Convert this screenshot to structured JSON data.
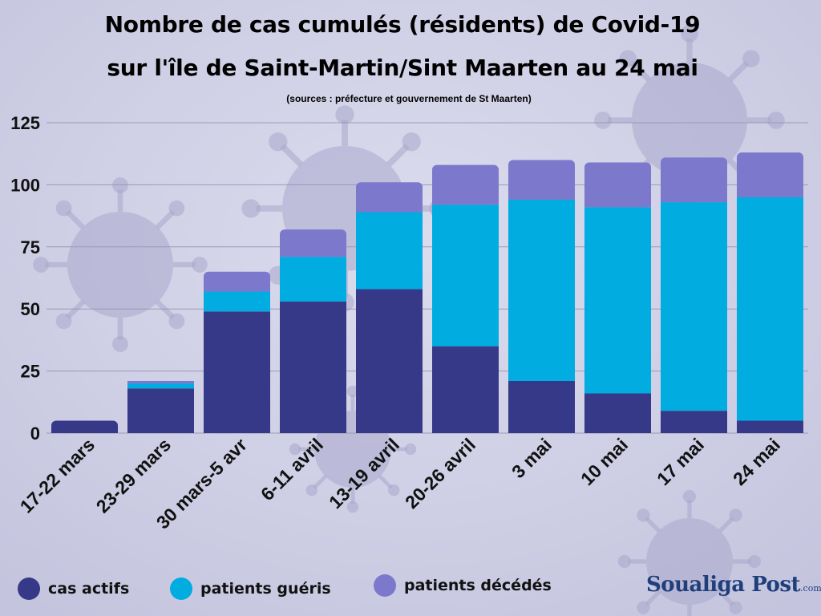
{
  "title_line1": "Nombre de  cas cumulés (résidents) de Covid-19",
  "title_line2": "sur l'île de Saint-Martin/Sint Maarten au 24 mai",
  "subtitle": "(sources : préfecture et gouvernement de St Maarten)",
  "brand": {
    "name": "Soualiga Post",
    "suffix": ".com"
  },
  "colors": {
    "background": "#cfcfe6",
    "actifs": "#363888",
    "gueris": "#00ace0",
    "decedes": "#7c79cc",
    "grid": "#9a9ab4"
  },
  "chart_data": {
    "type": "bar",
    "stacked": true,
    "categories": [
      "17-22 mars",
      "23-29 mars",
      "30 mars-5 avr",
      "6-11 avril",
      "13-19 avril",
      "20-26 avril",
      "3 mai",
      "10 mai",
      "17 mai",
      "24 mai"
    ],
    "series": [
      {
        "name": "cas actifs",
        "color": "#363888",
        "values": [
          5,
          18,
          49,
          53,
          58,
          35,
          21,
          16,
          9,
          5
        ]
      },
      {
        "name": "patients guéris",
        "color": "#00ace0",
        "values": [
          0,
          2,
          8,
          18,
          31,
          57,
          73,
          75,
          84,
          90
        ]
      },
      {
        "name": "patients décédés",
        "color": "#7c79cc",
        "values": [
          0,
          1,
          8,
          11,
          12,
          16,
          16,
          18,
          18,
          18
        ]
      }
    ],
    "y_ticks": [
      0,
      25,
      50,
      75,
      100,
      125
    ],
    "ylim": [
      0,
      125
    ],
    "grid": true,
    "legend_position": "bottom"
  }
}
